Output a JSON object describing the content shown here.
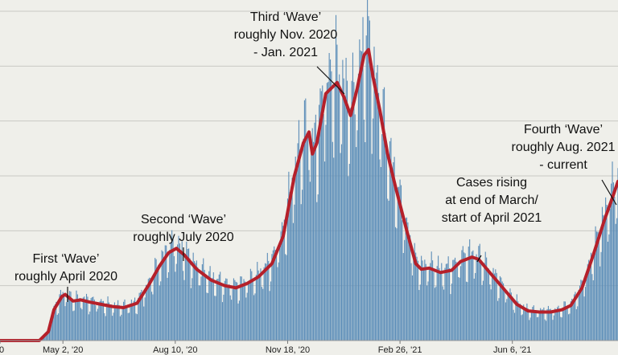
{
  "chart_data": {
    "type": "bar",
    "overlay_line": true,
    "grid": true,
    "bar_color": "#5b8db8",
    "line_color": "#b5202a",
    "background": "#efefea",
    "x_ticks": [
      {
        "label": "0",
        "day": -10
      },
      {
        "label": "May 2, '20",
        "day": 46
      },
      {
        "label": "Aug 10, '20",
        "day": 146
      },
      {
        "label": "Nov 18, '20",
        "day": 246
      },
      {
        "label": "Feb 26, '21",
        "day": 346
      },
      {
        "label": "Jun 6, '21",
        "day": 446
      }
    ],
    "xlim": [
      -10,
      540
    ],
    "ylim": [
      0,
      300000
    ],
    "gridlines": [
      50000,
      100000,
      150000,
      200000,
      250000,
      300000
    ],
    "series": [
      {
        "type": "line",
        "points": [
          [
            -10,
            0
          ],
          [
            25,
            0
          ],
          [
            33,
            8000
          ],
          [
            38,
            28000
          ],
          [
            45,
            40000
          ],
          [
            48,
            42000
          ],
          [
            55,
            36000
          ],
          [
            62,
            37000
          ],
          [
            70,
            35000
          ],
          [
            80,
            33000
          ],
          [
            90,
            31000
          ],
          [
            100,
            30000
          ],
          [
            112,
            34000
          ],
          [
            122,
            50000
          ],
          [
            132,
            68000
          ],
          [
            140,
            80000
          ],
          [
            147,
            84000
          ],
          [
            154,
            78000
          ],
          [
            165,
            65000
          ],
          [
            178,
            55000
          ],
          [
            190,
            50000
          ],
          [
            200,
            48000
          ],
          [
            210,
            52000
          ],
          [
            220,
            58000
          ],
          [
            232,
            70000
          ],
          [
            242,
            95000
          ],
          [
            252,
            150000
          ],
          [
            260,
            180000
          ],
          [
            265,
            190000
          ],
          [
            268,
            170000
          ],
          [
            272,
            180000
          ],
          [
            280,
            225000
          ],
          [
            290,
            235000
          ],
          [
            296,
            222000
          ],
          [
            302,
            205000
          ],
          [
            308,
            230000
          ],
          [
            314,
            260000
          ],
          [
            318,
            265000
          ],
          [
            322,
            240000
          ],
          [
            328,
            210000
          ],
          [
            335,
            170000
          ],
          [
            342,
            140000
          ],
          [
            352,
            100000
          ],
          [
            360,
            70000
          ],
          [
            365,
            65000
          ],
          [
            372,
            66000
          ],
          [
            382,
            62000
          ],
          [
            392,
            64000
          ],
          [
            400,
            72000
          ],
          [
            410,
            76000
          ],
          [
            416,
            74000
          ],
          [
            425,
            63000
          ],
          [
            440,
            45000
          ],
          [
            450,
            33000
          ],
          [
            460,
            27000
          ],
          [
            470,
            26000
          ],
          [
            480,
            26000
          ],
          [
            490,
            28000
          ],
          [
            498,
            32000
          ],
          [
            508,
            48000
          ],
          [
            518,
            78000
          ],
          [
            528,
            110000
          ],
          [
            535,
            130000
          ],
          [
            540,
            145000
          ]
        ]
      }
    ],
    "annotations": [
      {
        "lines": [
          "First ‘Wave’",
          "roughly April 2020"
        ],
        "target": [
          45,
          42000
        ]
      },
      {
        "lines": [
          "Second ‘Wave’",
          "roughly July 2020"
        ],
        "target": [
          148,
          83000
        ]
      },
      {
        "lines": [
          "Third ‘Wave’",
          "roughly Nov. 2020",
          "- Jan. 2021"
        ],
        "target": [
          293,
          232000
        ]
      },
      {
        "lines": [
          "Cases rising",
          "at end of March/",
          "start of April 2021"
        ],
        "target": [
          410,
          75000
        ]
      },
      {
        "lines": [
          "Fourth ‘Wave’",
          "roughly Aug. 2021",
          "- current"
        ],
        "target": [
          537,
          130000
        ]
      }
    ]
  }
}
